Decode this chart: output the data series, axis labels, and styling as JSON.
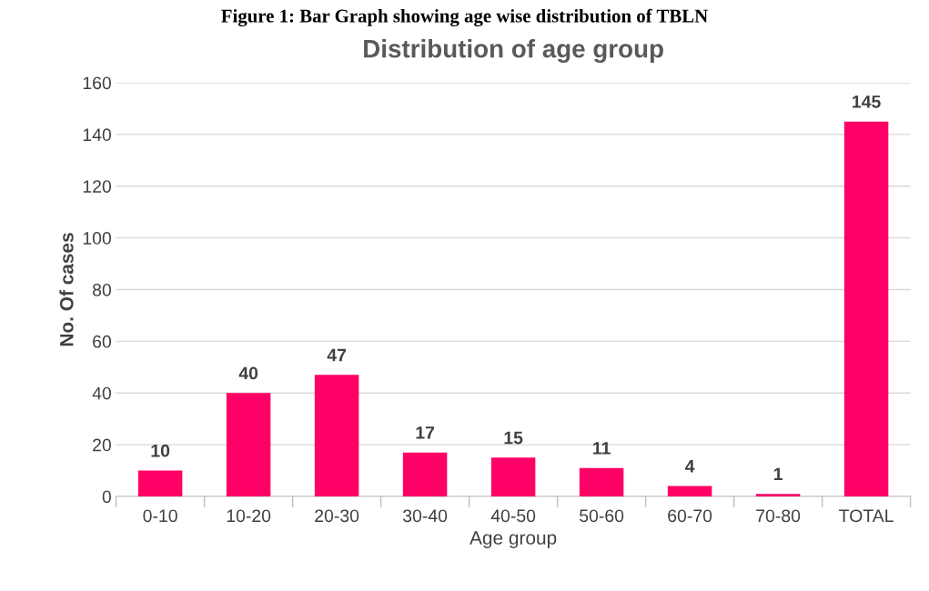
{
  "chart_data": {
    "type": "bar",
    "title": "Distribution of age group",
    "xlabel": "Age group",
    "ylabel": "No. Of cases",
    "annotations": [
      "Figure 1: Bar Graph showing age wise distribution of TBLN"
    ],
    "categories": [
      "0-10",
      "10-20",
      "20-30",
      "30-40",
      "40-50",
      "50-60",
      "60-70",
      "70-80",
      "TOTAL"
    ],
    "values": [
      10,
      40,
      47,
      17,
      15,
      11,
      4,
      1,
      145
    ],
    "color": "#ff0066",
    "ylim": [
      0,
      160
    ],
    "yticks": [
      0,
      20,
      40,
      60,
      80,
      100,
      120,
      140,
      160
    ],
    "grid": "y",
    "data_labels": true
  }
}
